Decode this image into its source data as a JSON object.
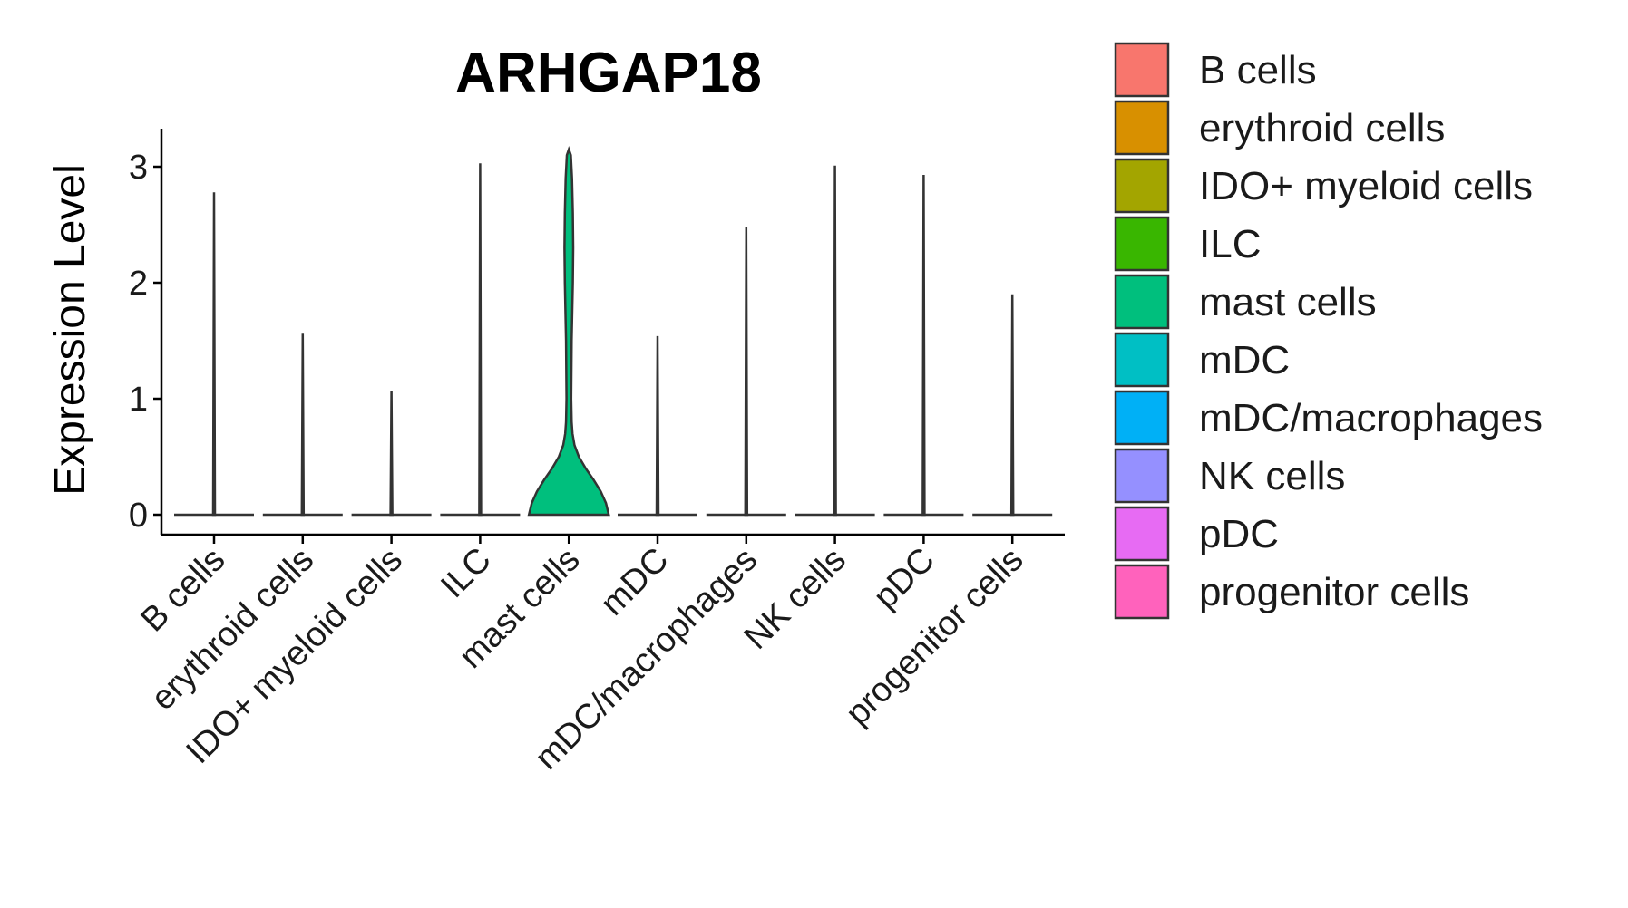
{
  "chart_data": {
    "type": "violin",
    "title": "ARHGAP18",
    "xlabel": "",
    "ylabel": "Expression Level",
    "ylim": [
      -0.15,
      3.3
    ],
    "yticks": [
      0,
      1,
      2,
      3
    ],
    "categories": [
      "B cells",
      "erythroid cells",
      "IDO+ myeloid cells",
      "ILC",
      "mast cells",
      "mDC",
      "mDC/macrophages",
      "NK cells",
      "pDC",
      "progenitor cells"
    ],
    "colors": [
      "#F8766D",
      "#D89000",
      "#A3A500",
      "#39B600",
      "#00BF7D",
      "#00BFC4",
      "#00B0F6",
      "#9590FF",
      "#E76BF3",
      "#FF62BC"
    ],
    "max_values": [
      2.78,
      1.56,
      1.07,
      3.03,
      3.15,
      1.54,
      2.48,
      3.01,
      2.93,
      1.9
    ],
    "mast_cells_density": [
      {
        "y": 0.0,
        "w": 1.0
      },
      {
        "y": 0.1,
        "w": 0.93
      },
      {
        "y": 0.2,
        "w": 0.8
      },
      {
        "y": 0.3,
        "w": 0.62
      },
      {
        "y": 0.4,
        "w": 0.42
      },
      {
        "y": 0.5,
        "w": 0.25
      },
      {
        "y": 0.6,
        "w": 0.14
      },
      {
        "y": 0.7,
        "w": 0.09
      },
      {
        "y": 0.8,
        "w": 0.07
      },
      {
        "y": 1.0,
        "w": 0.06
      },
      {
        "y": 1.5,
        "w": 0.07
      },
      {
        "y": 2.0,
        "w": 0.1
      },
      {
        "y": 2.3,
        "w": 0.11
      },
      {
        "y": 2.6,
        "w": 0.1
      },
      {
        "y": 2.9,
        "w": 0.08
      },
      {
        "y": 3.1,
        "w": 0.05
      },
      {
        "y": 3.15,
        "w": 0.0
      }
    ],
    "legend_title": "",
    "legend": [
      "B cells",
      "erythroid cells",
      "IDO+ myeloid cells",
      "ILC",
      "mast cells",
      "mDC",
      "mDC/macrophages",
      "NK cells",
      "pDC",
      "progenitor cells"
    ],
    "legend_position": "right",
    "grid": false
  }
}
